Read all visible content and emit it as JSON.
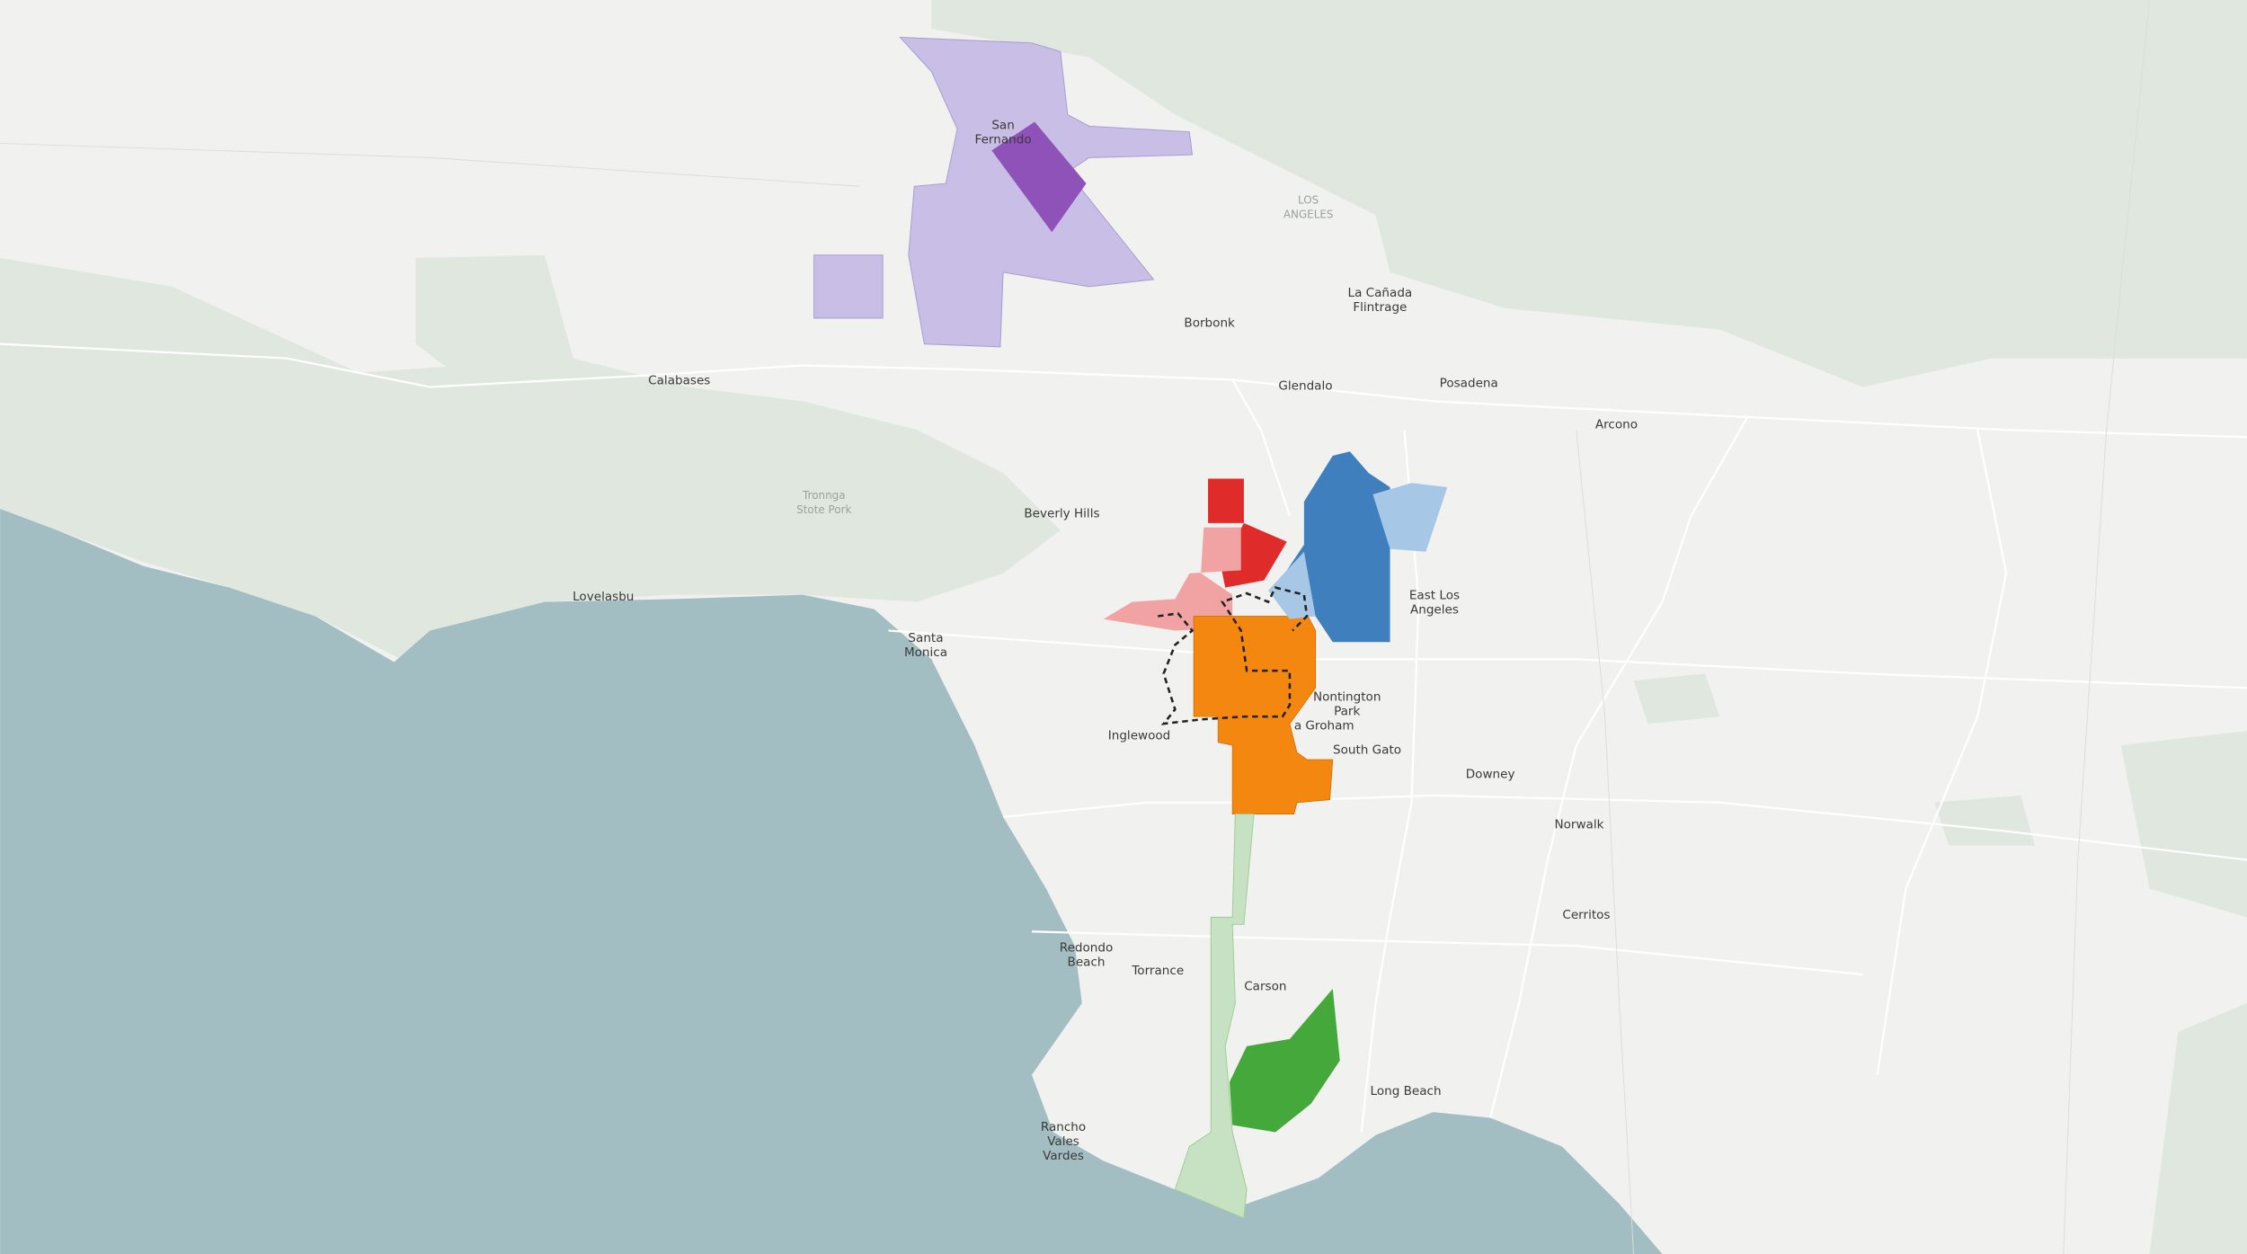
{
  "labels": [
    {
      "lines": [
        "LOS",
        "ANGELES"
      ]
    },
    {
      "lines": [
        "San",
        "Fernando"
      ]
    },
    {
      "lines": [
        "La Cañada",
        "Flintrage"
      ]
    },
    {
      "lines": [
        "Borbonk"
      ]
    },
    {
      "lines": [
        "Calabases"
      ]
    },
    {
      "lines": [
        "Glendalo"
      ]
    },
    {
      "lines": [
        "Posadena"
      ]
    },
    {
      "lines": [
        "Arcono"
      ]
    },
    {
      "lines": [
        "Tronnga",
        "Stote Pork"
      ]
    },
    {
      "lines": [
        "Beverly Hills"
      ]
    },
    {
      "lines": [
        "Lovelasbu"
      ]
    },
    {
      "lines": [
        "Santa",
        "Monica"
      ]
    },
    {
      "lines": [
        "East Los",
        "Angeles"
      ]
    },
    {
      "lines": [
        "Nontington",
        "Park"
      ]
    },
    {
      "lines": [
        "a Groham"
      ]
    },
    {
      "lines": [
        "Inglewood"
      ]
    },
    {
      "lines": [
        "South Gato"
      ]
    },
    {
      "lines": [
        "Downey"
      ]
    },
    {
      "lines": [
        "Norwalk"
      ]
    },
    {
      "lines": [
        "Cerritos"
      ]
    },
    {
      "lines": [
        "Redondo",
        "Beach"
      ]
    },
    {
      "lines": [
        "Torrance"
      ]
    },
    {
      "lines": [
        "Carson"
      ]
    },
    {
      "lines": [
        "Long Beach"
      ]
    },
    {
      "lines": [
        "Rancho",
        "Vales",
        "Vardes"
      ]
    }
  ]
}
